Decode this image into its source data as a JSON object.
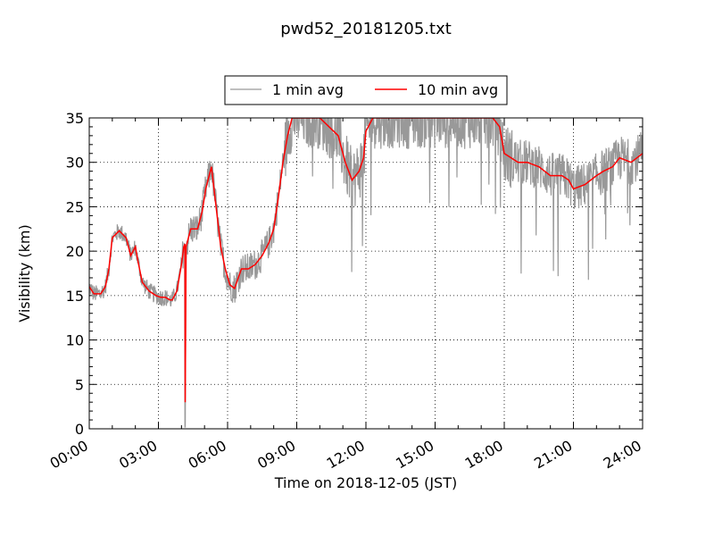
{
  "chart_data": {
    "type": "line",
    "title": "pwd52_20181205.txt",
    "xlabel": "Time on 2018-12-05 (JST)",
    "ylabel": "Visibility (km)",
    "xlim": [
      0,
      24
    ],
    "ylim": [
      0,
      35
    ],
    "x_unit": "hours",
    "x_ticks": [
      {
        "value": 0,
        "label": "00:00"
      },
      {
        "value": 3,
        "label": "03:00"
      },
      {
        "value": 6,
        "label": "06:00"
      },
      {
        "value": 9,
        "label": "09:00"
      },
      {
        "value": 12,
        "label": "12:00"
      },
      {
        "value": 15,
        "label": "15:00"
      },
      {
        "value": 18,
        "label": "18:00"
      },
      {
        "value": 21,
        "label": "21:00"
      },
      {
        "value": 24,
        "label": "24:00"
      }
    ],
    "y_ticks": [
      0,
      5,
      10,
      15,
      20,
      25,
      30,
      35
    ],
    "grid": true,
    "legend": {
      "placement": "top-center-outside",
      "entries": [
        "1 min avg",
        "10 min avg"
      ]
    },
    "series": [
      {
        "name": "1 min avg",
        "color": "#999999",
        "base_x": [
          0,
          0.2,
          0.5,
          0.7,
          0.85,
          1.0,
          1.3,
          1.6,
          1.8,
          2.0,
          2.1,
          2.3,
          2.6,
          2.9,
          3.1,
          3.3,
          3.5,
          3.6,
          3.8,
          4.0,
          4.1,
          4.15,
          4.16,
          4.2,
          4.4,
          4.7,
          4.9,
          5.05,
          5.3,
          5.5,
          5.7,
          5.9,
          6.1,
          6.3,
          6.6,
          6.9,
          7.2,
          7.5,
          7.8,
          8.0,
          8.2,
          8.4,
          8.6,
          8.8,
          9.0,
          9.3,
          9.6,
          10.0,
          10.4,
          10.8,
          11.1,
          11.4,
          11.7,
          11.9,
          12.0,
          12.3,
          12.6,
          13.0,
          13.5,
          14.0,
          14.5,
          15.0,
          15.5,
          16.0,
          16.5,
          17.0,
          17.5,
          17.8,
          18.0,
          18.3,
          18.6,
          19.0,
          19.5,
          20.0,
          20.5,
          20.8,
          21.0,
          21.5,
          22.0,
          22.3,
          22.7,
          23.0,
          23.5,
          24.0
        ],
        "base_y": [
          16,
          15.2,
          15.2,
          16,
          18,
          21.5,
          22.3,
          21.5,
          19.5,
          20.5,
          19,
          16.5,
          15.5,
          15,
          14.8,
          14.8,
          14.5,
          14.5,
          15.5,
          18.5,
          20.5,
          20.8,
          3,
          20.5,
          22.5,
          22.5,
          24.5,
          27,
          29.5,
          25,
          20.5,
          18,
          16.2,
          15.8,
          18,
          18,
          18.5,
          19.5,
          21,
          22.5,
          26,
          30,
          33,
          35,
          35,
          35,
          35,
          35,
          34,
          33,
          30,
          28,
          29,
          30.5,
          33.5,
          35,
          35,
          35,
          35,
          35,
          35,
          35,
          35,
          35,
          35,
          35,
          35,
          34,
          31,
          30.5,
          30,
          30,
          29.5,
          28.5,
          28.5,
          28,
          27,
          27.5,
          28.5,
          29,
          29.5,
          30.5,
          30,
          31
        ],
        "noise_amplitude_km": 1.8,
        "sample_interval_min": 1
      },
      {
        "name": "10 min avg",
        "color": "#ff0000",
        "x": [
          0,
          0.2,
          0.5,
          0.7,
          0.85,
          1.0,
          1.3,
          1.6,
          1.8,
          2.0,
          2.1,
          2.3,
          2.6,
          2.9,
          3.1,
          3.3,
          3.5,
          3.6,
          3.8,
          4.0,
          4.1,
          4.15,
          4.16,
          4.2,
          4.4,
          4.7,
          4.9,
          5.05,
          5.3,
          5.5,
          5.7,
          5.9,
          6.1,
          6.3,
          6.6,
          6.9,
          7.2,
          7.5,
          7.8,
          8.0,
          8.2,
          8.4,
          8.6,
          8.8,
          9.0,
          9.3,
          9.6,
          10.0,
          10.4,
          10.8,
          11.1,
          11.4,
          11.7,
          11.9,
          12.0,
          12.3,
          12.6,
          13.0,
          13.5,
          14.0,
          14.5,
          15.0,
          15.5,
          16.0,
          16.5,
          17.0,
          17.5,
          17.8,
          18.0,
          18.3,
          18.6,
          19.0,
          19.5,
          20.0,
          20.5,
          20.8,
          21.0,
          21.5,
          22.0,
          22.3,
          22.7,
          23.0,
          23.5,
          24.0
        ],
        "y": [
          16,
          15.2,
          15.2,
          16,
          18,
          21.5,
          22.3,
          21.5,
          19.5,
          20.5,
          19,
          16.5,
          15.5,
          15,
          14.8,
          14.8,
          14.5,
          14.5,
          15.5,
          18.5,
          20.5,
          20.8,
          3,
          20.5,
          22.5,
          22.5,
          24.5,
          27,
          29.5,
          25,
          20.5,
          18,
          16.2,
          15.8,
          18,
          18,
          18.5,
          19.5,
          21,
          22.5,
          26,
          30,
          33,
          35,
          35,
          35,
          35,
          35,
          34,
          33,
          30,
          28,
          29,
          30.5,
          33.5,
          35,
          35,
          35,
          35,
          35,
          35,
          35,
          35,
          35,
          35,
          35,
          35,
          34,
          31,
          30.5,
          30,
          30,
          29.5,
          28.5,
          28.5,
          28,
          27,
          27.5,
          28.5,
          29,
          29.5,
          30.5,
          30,
          31
        ]
      }
    ]
  }
}
